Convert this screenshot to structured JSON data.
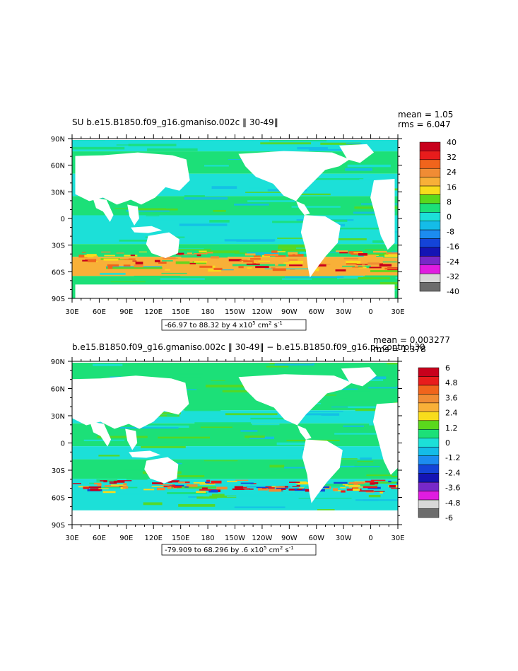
{
  "chart_data": [
    {
      "type": "heatmap",
      "title": "SU b.e15.B1850.f09_g16.gmaniso.002c ‖ 30-49‖",
      "stats": {
        "mean": "mean = 1.05",
        "rms": "rms = 6.047"
      },
      "range_label": "-66.97 to 88.32 by 4 x10",
      "range_exp": "5",
      "range_units": " cm",
      "range_units_exp": "2",
      "range_s": " s",
      "range_s_exp": "-1",
      "y_ticks": [
        "90N",
        "60N",
        "30N",
        "0",
        "30S",
        "60S",
        "90S"
      ],
      "x_ticks": [
        "30E",
        "60E",
        "90E",
        "120E",
        "150E",
        "180",
        "150W",
        "120W",
        "90W",
        "60W",
        "30W",
        "0",
        "30E"
      ],
      "xlim": [
        30,
        390
      ],
      "ylim": [
        -90,
        90
      ],
      "colorbar": {
        "labels": [
          "40",
          "32",
          "24",
          "16",
          "8",
          "0",
          "-8",
          "-16",
          "-24",
          "-32",
          "-40"
        ],
        "colors": [
          "#c8001c",
          "#e81c1c",
          "#f0641c",
          "#f08c34",
          "#f8b038",
          "#f8dc1c",
          "#5ad81c",
          "#1ce078",
          "#1ce0d8",
          "#14bce8",
          "#1c8cf0",
          "#1444d8",
          "#1414b4",
          "#7828c8",
          "#e01ce0",
          "#d8d8d8",
          "#6c6c6c"
        ]
      }
    },
    {
      "type": "heatmap",
      "title": "b.e15.B1850.f09_g16.gmaniso.002c ‖ 30-49‖ − b.e15.B1850.f09_g16.pi_control.30",
      "stats": {
        "mean": "mean = 0.003277",
        "rms": "rms = 1.378"
      },
      "range_label": "-79.909 to 68.296 by .6 x10",
      "range_exp": "5",
      "range_units": " cm",
      "range_units_exp": "2",
      "range_s": " s",
      "range_s_exp": "-1",
      "y_ticks": [
        "90N",
        "60N",
        "30N",
        "0",
        "30S",
        "60S",
        "90S"
      ],
      "x_ticks": [
        "30E",
        "60E",
        "90E",
        "120E",
        "150E",
        "180",
        "150W",
        "120W",
        "90W",
        "60W",
        "30W",
        "0",
        "30E"
      ],
      "xlim": [
        30,
        390
      ],
      "ylim": [
        -90,
        90
      ],
      "colorbar": {
        "labels": [
          "6",
          "4.8",
          "3.6",
          "2.4",
          "1.2",
          "0",
          "-1.2",
          "-2.4",
          "-3.6",
          "-4.8",
          "-6"
        ],
        "colors": [
          "#c8001c",
          "#e81c1c",
          "#f0641c",
          "#f08c34",
          "#f8b038",
          "#f8dc1c",
          "#5ad81c",
          "#1ce078",
          "#1ce0d8",
          "#14bce8",
          "#1c8cf0",
          "#1444d8",
          "#1414b4",
          "#7828c8",
          "#e01ce0",
          "#d8d8d8",
          "#6c6c6c"
        ]
      }
    }
  ]
}
